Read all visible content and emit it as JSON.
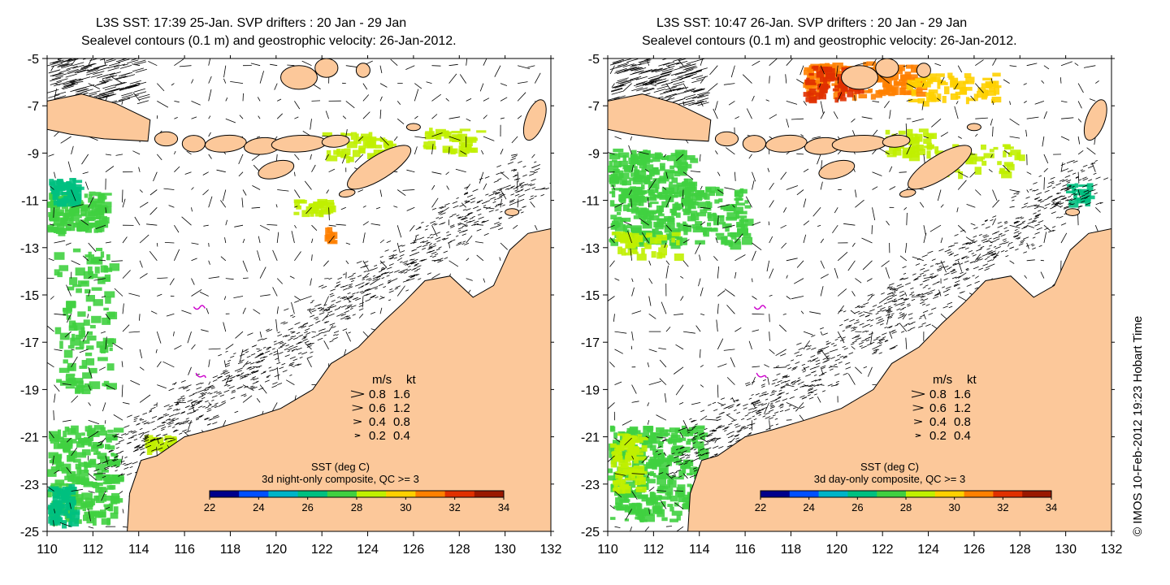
{
  "panels": [
    {
      "title_line1": "L3S SST: 17:39 25-Jan. SVP drifters : 20 Jan - 29 Jan",
      "title_line2": "Sealevel contours (0.1 m) and geostrophic velocity: 26-Jan-2012.",
      "composite_label": "3d night-only composite, QC >= 3"
    },
    {
      "title_line1": "L3S SST: 10:47 26-Jan. SVP drifters : 20 Jan - 29 Jan",
      "title_line2": "Sealevel contours (0.1 m) and geostrophic velocity: 26-Jan-2012.",
      "composite_label": "3d day-only composite, QC >= 3"
    }
  ],
  "axes": {
    "x_ticks": [
      "110",
      "112",
      "114",
      "116",
      "118",
      "120",
      "122",
      "124",
      "126",
      "128",
      "130",
      "132"
    ],
    "y_ticks": [
      "-5",
      "-7",
      "-9",
      "-11",
      "-13",
      "-15",
      "-17",
      "-19",
      "-21",
      "-23",
      "-25"
    ],
    "lon_range": [
      110,
      132
    ],
    "lat_range": [
      -25,
      -5
    ]
  },
  "legend": {
    "units_header": [
      "m/s",
      "kt"
    ],
    "rows": [
      {
        "ms": "0.8",
        "kt": "1.6"
      },
      {
        "ms": "0.6",
        "kt": "1.2"
      },
      {
        "ms": "0.4",
        "kt": "0.8"
      },
      {
        "ms": "0.2",
        "kt": "0.4"
      }
    ]
  },
  "colorbar": {
    "title": "SST (deg C)",
    "ticks": [
      "22",
      "24",
      "26",
      "28",
      "30",
      "32",
      "34"
    ],
    "range": [
      22,
      34
    ],
    "colors": [
      "#00008b",
      "#0050ff",
      "#00b4c8",
      "#00c080",
      "#40d040",
      "#c0f000",
      "#ffd000",
      "#ff8000",
      "#e03000",
      "#9a1800"
    ]
  },
  "colors": {
    "land": "#fcc89a",
    "coast": "#000000",
    "drifter": "#cc00cc"
  },
  "credit": "© IMOS 10-Feb-2012 19:23 Hobart Time"
}
